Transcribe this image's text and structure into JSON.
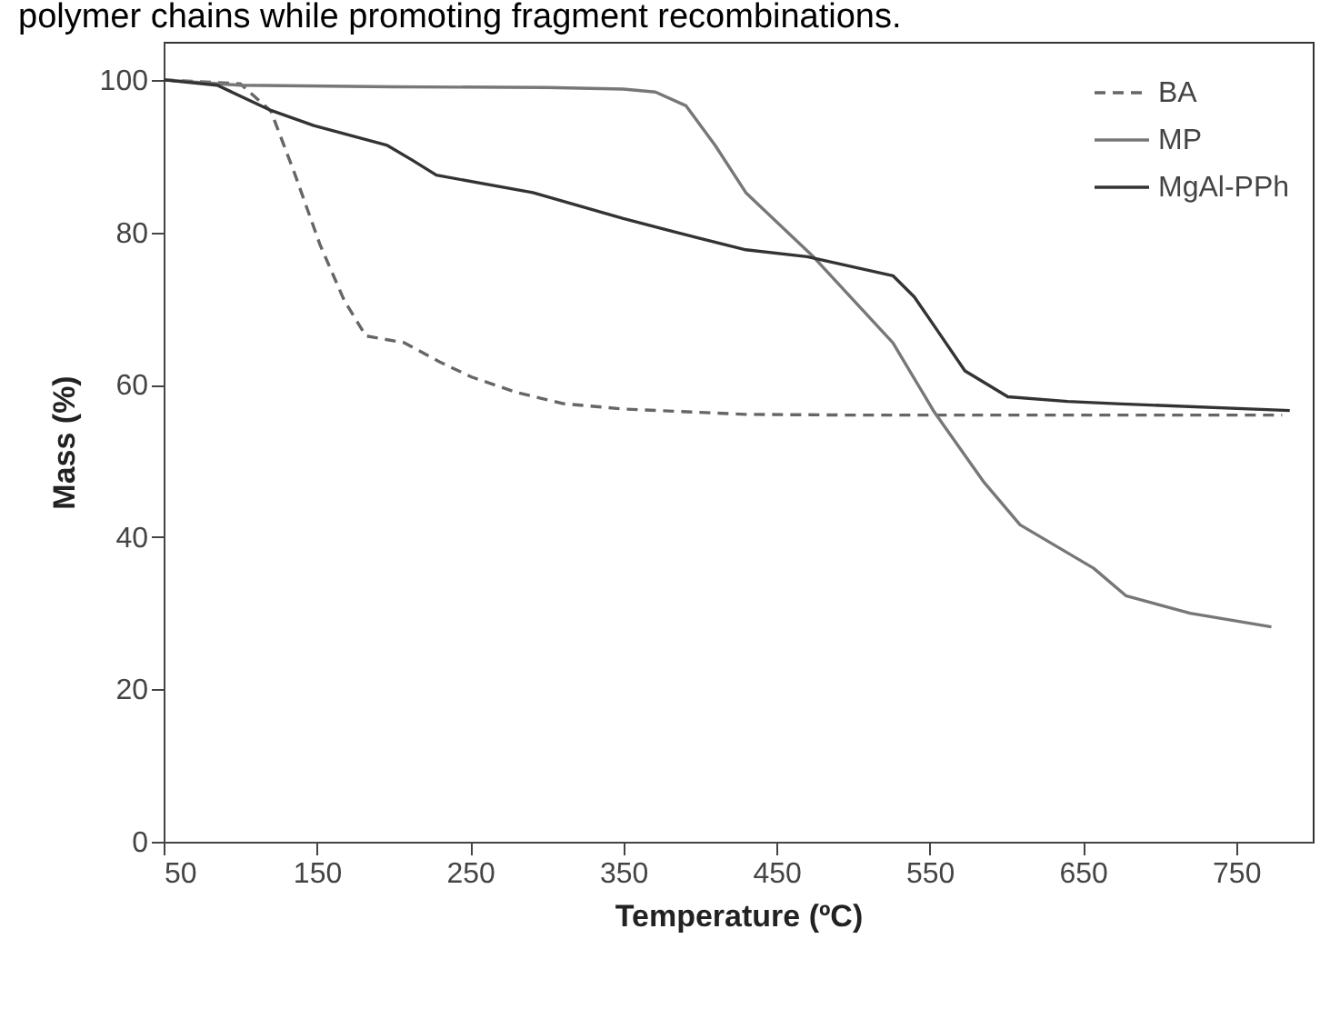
{
  "chart_data": {
    "type": "line",
    "annotations": [
      "polymer chains while promoting fragment recombinations."
    ],
    "xlabel": "Temperature (ºC)",
    "ylabel": "Mass (%)",
    "xlim": [
      50,
      800
    ],
    "ylim": [
      0,
      105
    ],
    "xticks": [
      50,
      150,
      250,
      350,
      450,
      550,
      650,
      750
    ],
    "yticks": [
      0,
      20,
      40,
      60,
      80,
      100
    ],
    "grid": false,
    "legend": "top right",
    "marker": "none",
    "series": [
      {
        "name": "BA",
        "color": "#666666",
        "line_style": "dashed",
        "x": [
          50,
          100,
          120,
          135,
          152,
          168,
          182,
          207,
          230,
          251,
          280,
          311,
          350,
          430,
          500,
          600,
          700,
          780
        ],
        "values": [
          100,
          99.5,
          95.9,
          88,
          78.4,
          71,
          66.4,
          65.5,
          63,
          61,
          59,
          57.5,
          56.8,
          56.1,
          56,
          56,
          56,
          56
        ]
      },
      {
        "name": "MP",
        "color": "#777777",
        "line_style": "solid",
        "x": [
          50,
          100,
          200,
          300,
          350,
          371,
          391,
          410,
          430,
          474,
          526,
          553,
          585,
          609,
          657,
          678,
          720,
          773
        ],
        "values": [
          100,
          99.3,
          99.1,
          99,
          98.8,
          98.4,
          96.6,
          91.4,
          85.2,
          76.8,
          65.5,
          56.4,
          47.3,
          41.6,
          35.9,
          32.3,
          30,
          28.2
        ]
      },
      {
        "name": "MgAl-PPh",
        "color": "#333333",
        "line_style": "solid",
        "x": [
          50,
          85,
          120,
          148,
          196,
          212,
          228,
          291,
          350,
          394,
          430,
          470,
          526,
          540,
          553,
          573,
          601,
          640,
          672,
          785
        ],
        "values": [
          100,
          99.3,
          96,
          94,
          91.4,
          89.5,
          87.5,
          85.2,
          81.8,
          79.5,
          77.7,
          76.8,
          74.3,
          71.5,
          67.7,
          61.8,
          58.4,
          57.8,
          57.5,
          56.6
        ]
      }
    ]
  }
}
